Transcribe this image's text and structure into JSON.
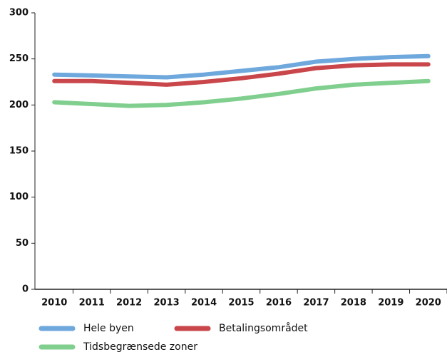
{
  "chart_data": {
    "type": "line",
    "categories": [
      "2010",
      "2011",
      "2012",
      "2013",
      "2014",
      "2015",
      "2016",
      "2017",
      "2018",
      "2019",
      "2020"
    ],
    "series": [
      {
        "name": "Hele byen",
        "color": "#6fa8dc",
        "values": [
          233,
          232,
          231,
          230,
          233,
          237,
          241,
          247,
          250,
          252,
          253
        ]
      },
      {
        "name": "Betalingsområdet",
        "color": "#c9474b",
        "values": [
          226,
          226,
          224,
          222,
          225,
          229,
          234,
          240,
          243,
          244,
          244
        ]
      },
      {
        "name": "Tidsbegrænsede zoner",
        "color": "#80cf8e",
        "values": [
          203,
          201,
          199,
          200,
          203,
          207,
          212,
          218,
          222,
          224,
          226
        ]
      }
    ],
    "ylim": [
      0,
      300
    ],
    "yticks": [
      0,
      50,
      100,
      150,
      200,
      250,
      300
    ],
    "grid": false
  }
}
